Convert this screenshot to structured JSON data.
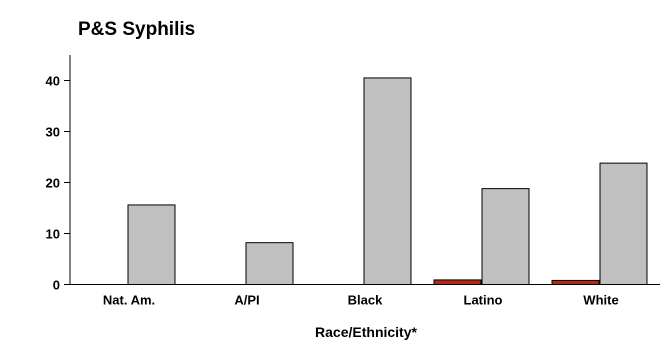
{
  "chart_data": {
    "type": "bar",
    "title": "P&S Syphilis",
    "xlabel": "Race/Ethnicity*",
    "ylabel": "",
    "ylim": [
      0,
      45
    ],
    "yticks": [
      0,
      10,
      20,
      30,
      40
    ],
    "categories": [
      "Nat. Am.",
      "A/PI",
      "Black",
      "Latino",
      "White"
    ],
    "series": [
      {
        "values": [
          0,
          0,
          0,
          0.9,
          0.8
        ],
        "color": "#b22a14"
      },
      {
        "values": [
          15.6,
          8.2,
          40.5,
          18.8,
          23.8
        ],
        "color": "#c0c0c0"
      }
    ],
    "grid": false,
    "legend": "none"
  }
}
